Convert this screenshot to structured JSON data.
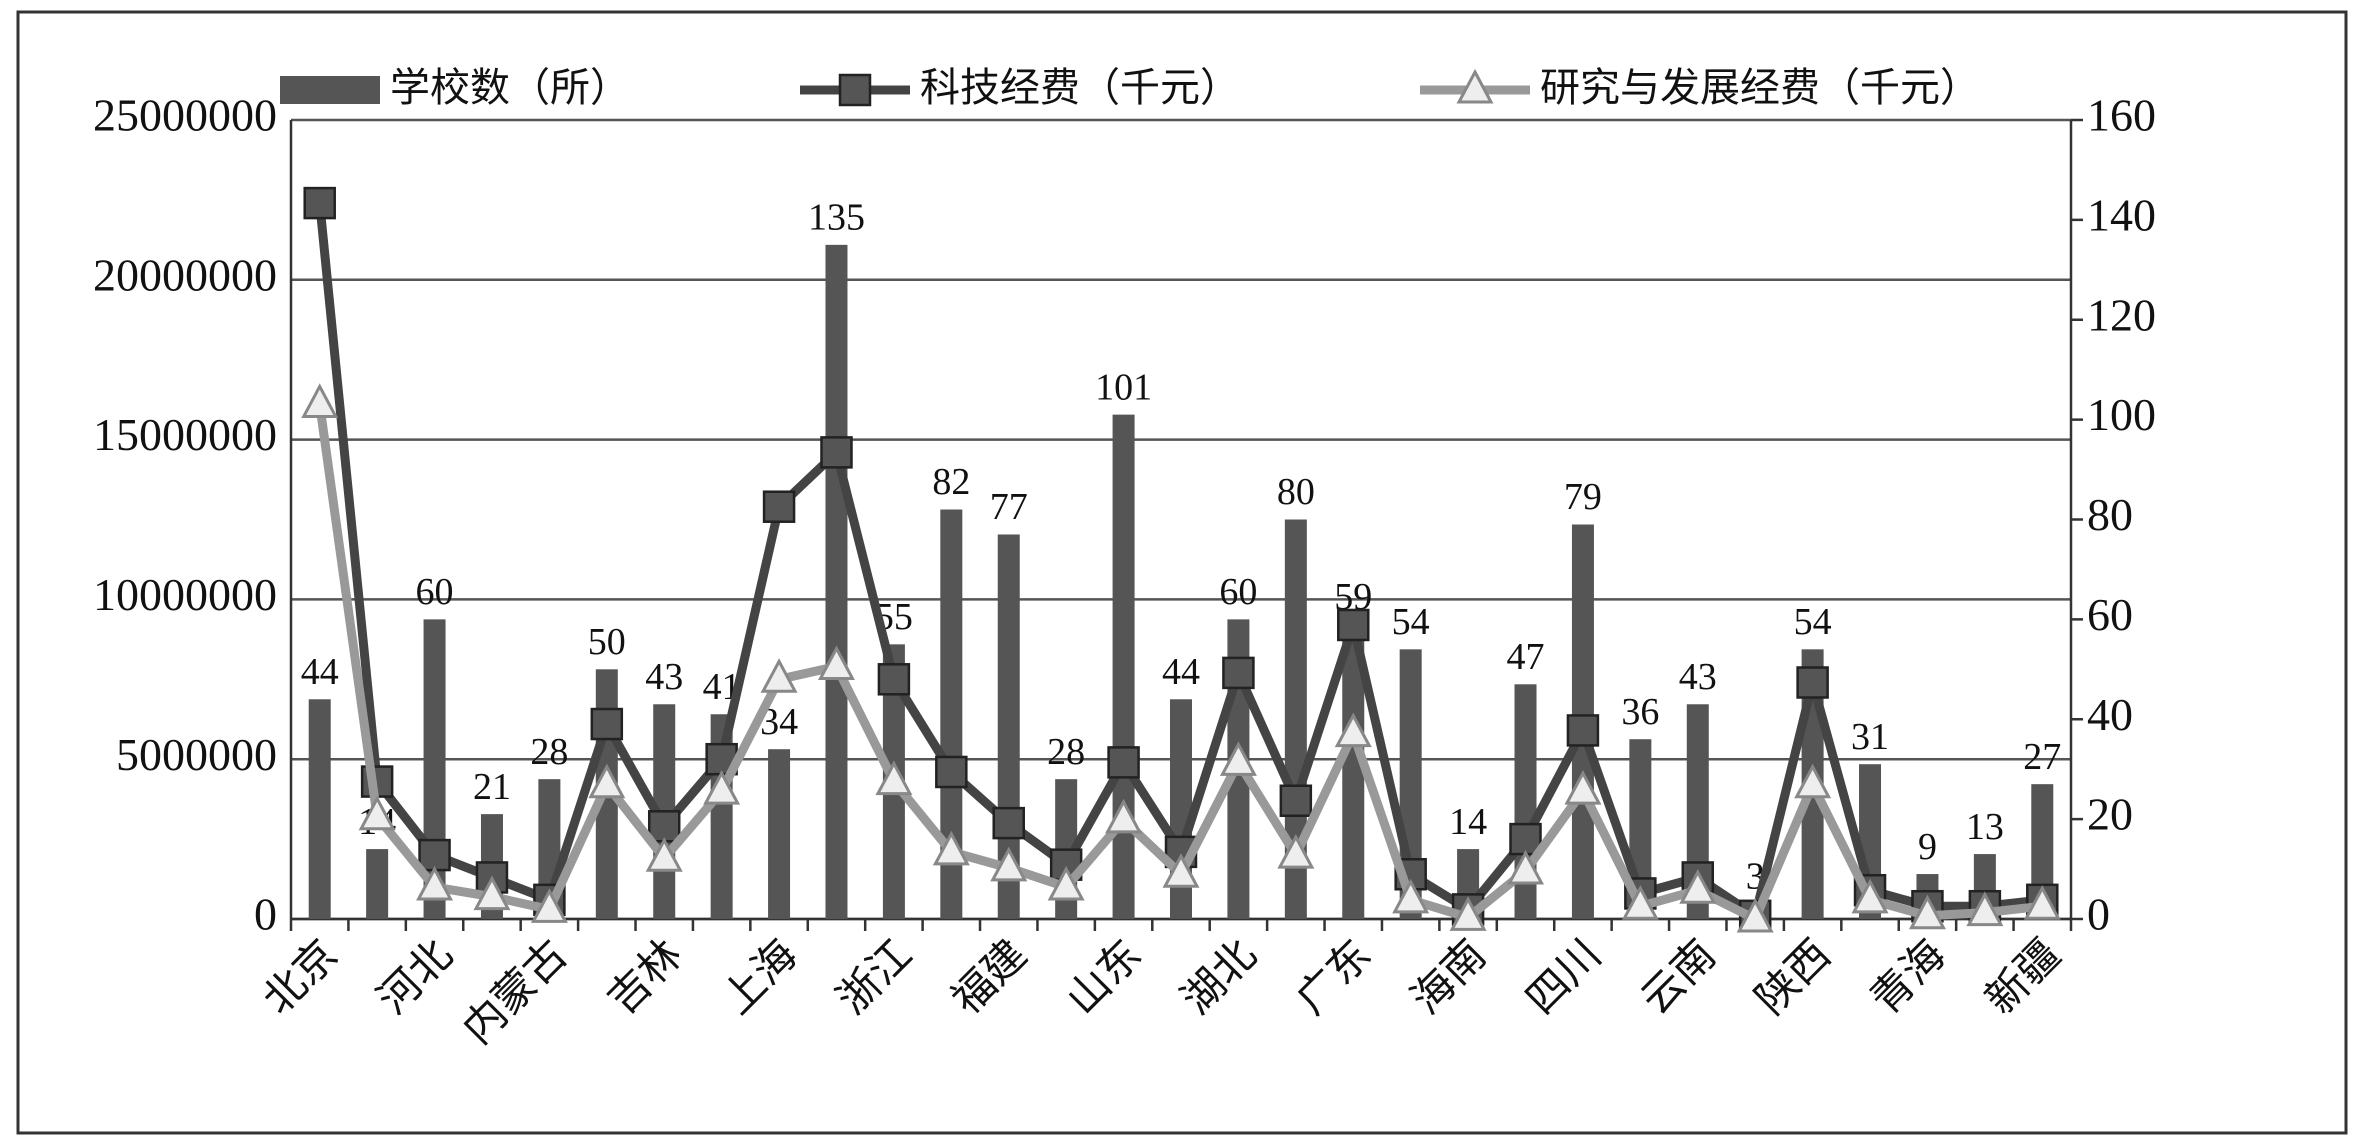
{
  "chart_data": {
    "type": "bar",
    "categories": [
      "北京",
      null,
      "河北",
      null,
      "内蒙古",
      null,
      "吉林",
      null,
      "上海",
      null,
      "浙江",
      null,
      "福建",
      null,
      "山东",
      null,
      "湖北",
      null,
      "广东",
      null,
      "海南",
      null,
      "四川",
      null,
      "云南",
      null,
      "陕西",
      null,
      "青海",
      null,
      "新疆"
    ],
    "series": [
      {
        "name": "学校数（所）",
        "type": "bar",
        "axis": "y2",
        "color": "#555555",
        "values": [
          44,
          14,
          60,
          21,
          28,
          50,
          43,
          41,
          34,
          135,
          55,
          82,
          77,
          28,
          101,
          44,
          60,
          80,
          59,
          54,
          14,
          47,
          79,
          36,
          43,
          3,
          54,
          31,
          9,
          13,
          27
        ]
      },
      {
        "name": "科技经费（千元）",
        "type": "line",
        "color": "#444444",
        "values": [
          22400000,
          4300000,
          2000000,
          1300000,
          600000,
          6100000,
          2900000,
          5000000,
          12900000,
          14600000,
          7500000,
          4600000,
          3000000,
          1700000,
          4900000,
          2100000,
          7700000,
          3700000,
          9200000,
          1400000,
          300000,
          2500000,
          5900000,
          800000,
          1300000,
          100000,
          7400000,
          900000,
          400000,
          400000,
          600000
        ]
      },
      {
        "name": "研究与发展经费（千元）",
        "type": "line",
        "color": "#999999",
        "values": [
          16100000,
          3200000,
          1000000,
          700000,
          300000,
          4200000,
          1900000,
          4000000,
          7500000,
          7900000,
          4300000,
          2100000,
          1600000,
          1000000,
          3100000,
          1400000,
          4900000,
          2000000,
          5800000,
          600000,
          50000,
          1500000,
          4000000,
          400000,
          900000,
          0,
          4200000,
          600000,
          100000,
          200000,
          400000
        ]
      }
    ],
    "ylim": [
      0,
      25000000
    ],
    "yticks": [
      0,
      5000000,
      10000000,
      15000000,
      20000000,
      25000000
    ],
    "y2lim": [
      0,
      160
    ],
    "y2ticks": [
      0,
      20,
      40,
      60,
      80,
      100,
      120,
      140,
      160
    ],
    "grid": true,
    "legend": "top"
  }
}
